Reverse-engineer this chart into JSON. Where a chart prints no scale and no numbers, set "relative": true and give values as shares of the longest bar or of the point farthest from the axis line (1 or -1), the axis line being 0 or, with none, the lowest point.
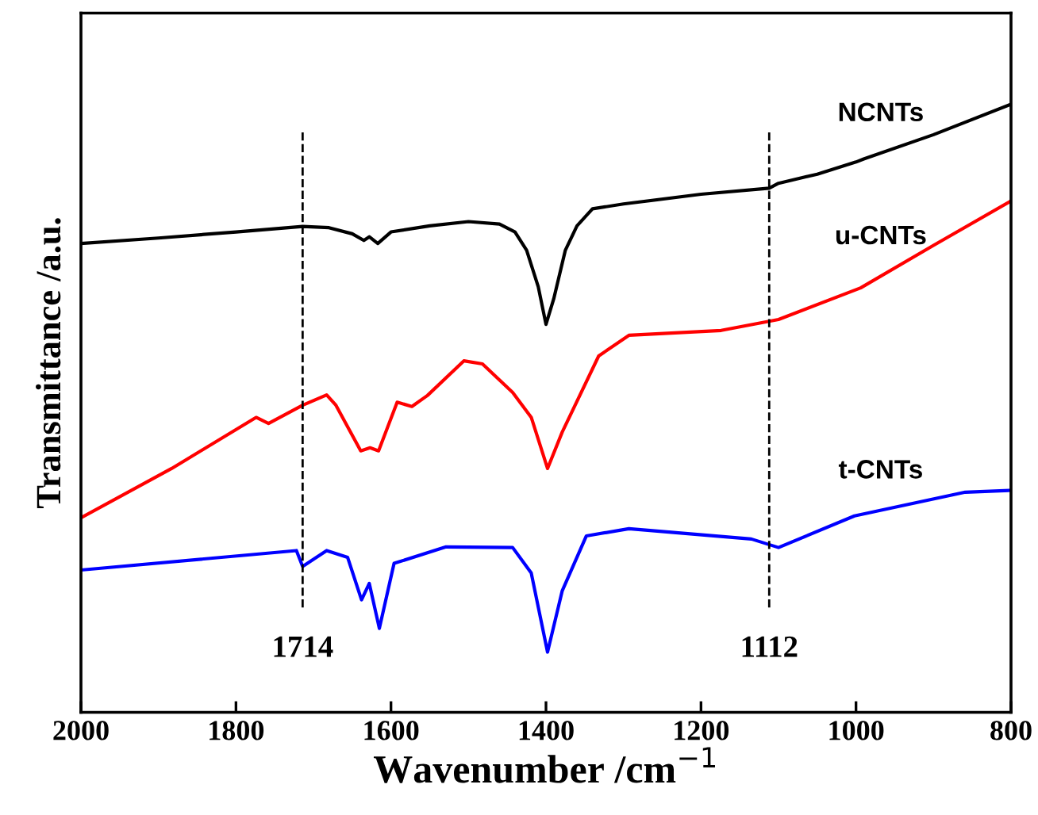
{
  "chart_data": {
    "type": "line",
    "relative": true,
    "xlabel": "Wavenumber /cm$^{−1}$",
    "ylabel": "Transmittance /a.u.",
    "xlim": [
      2000,
      800
    ],
    "xticks": [
      2000,
      1800,
      1600,
      1400,
      1200,
      1000,
      800
    ],
    "series": [
      {
        "name": "NCNTs",
        "color": "#000000",
        "x": [
          2000,
          1900,
          1800,
          1714,
          1680,
          1650,
          1635,
          1628,
          1617,
          1600,
          1550,
          1500,
          1460,
          1440,
          1425,
          1410,
          1400,
          1390,
          1375,
          1360,
          1340,
          1300,
          1200,
          1112,
          1100,
          1050,
          1000,
          990,
          900,
          800
        ],
        "values": [
          0.771,
          0.78,
          0.79,
          0.799,
          0.797,
          0.787,
          0.776,
          0.782,
          0.771,
          0.79,
          0.8,
          0.807,
          0.803,
          0.79,
          0.76,
          0.7,
          0.638,
          0.68,
          0.76,
          0.8,
          0.828,
          0.836,
          0.852,
          0.862,
          0.87,
          0.885,
          0.905,
          0.91,
          0.95,
          1.0
        ]
      },
      {
        "name": "u-CNTs",
        "color": "#ff0000",
        "x": [
          2000,
          1883,
          1774,
          1758,
          1714,
          1683,
          1671,
          1639,
          1627,
          1616,
          1592,
          1573,
          1553,
          1506,
          1482,
          1443,
          1419,
          1398,
          1379,
          1332,
          1293,
          1174,
          1100,
          994,
          900,
          800
        ],
        "values": [
          0.32,
          0.401,
          0.485,
          0.475,
          0.505,
          0.522,
          0.505,
          0.43,
          0.435,
          0.43,
          0.51,
          0.503,
          0.521,
          0.578,
          0.573,
          0.526,
          0.485,
          0.401,
          0.461,
          0.586,
          0.62,
          0.628,
          0.646,
          0.698,
          0.768,
          0.841
        ]
      },
      {
        "name": "t-CNTs",
        "color": "#0000ff",
        "x": [
          2000,
          1722,
          1714,
          1683,
          1656,
          1638,
          1628,
          1615,
          1596,
          1529,
          1443,
          1419,
          1398,
          1379,
          1348,
          1293,
          1135,
          1100,
          1002,
          859,
          800
        ],
        "values": [
          0.234,
          0.266,
          0.24,
          0.266,
          0.255,
          0.185,
          0.212,
          0.138,
          0.245,
          0.272,
          0.271,
          0.229,
          0.099,
          0.2,
          0.29,
          0.302,
          0.285,
          0.271,
          0.323,
          0.362,
          0.365
        ]
      }
    ],
    "ref_lines": [
      {
        "axis": "x",
        "value": 1714,
        "label": "1714",
        "line_style": "dashed",
        "color": "#000000"
      },
      {
        "axis": "x",
        "value": 1112,
        "label": "1112",
        "line_style": "dashed",
        "color": "#000000"
      }
    ]
  }
}
